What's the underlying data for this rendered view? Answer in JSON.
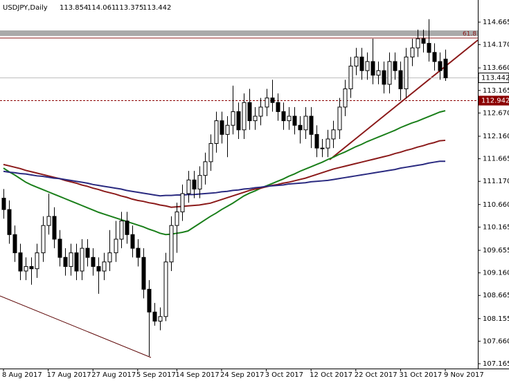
{
  "chart_data": {
    "type": "candlestick",
    "symbol": "USDJPY,Daily",
    "categories": [
      "8 Aug 2017",
      null,
      null,
      null,
      null,
      null,
      null,
      null,
      "17 Aug 2017",
      null,
      null,
      null,
      null,
      null,
      null,
      null,
      "27 Aug 2017",
      null,
      null,
      null,
      null,
      null,
      null,
      null,
      "5 Sep 2017",
      null,
      null,
      null,
      null,
      null,
      null,
      "14 Sep 2017",
      null,
      null,
      null,
      null,
      null,
      null,
      null,
      "24 Sep 2017",
      null,
      null,
      null,
      null,
      null,
      null,
      null,
      "3 Oct 2017",
      null,
      null,
      null,
      null,
      null,
      null,
      null,
      "12 Oct 2017",
      null,
      null,
      null,
      null,
      null,
      null,
      null,
      "22 Oct 2017",
      null,
      null,
      null,
      null,
      null,
      null,
      null,
      "31 Oct 2017",
      null,
      null,
      null,
      null,
      null,
      null,
      null,
      "9 Nov 2017"
    ],
    "open": [
      110.8,
      110.55,
      110.0,
      109.6,
      109.2,
      109.3,
      109.25,
      109.6,
      110.2,
      110.4,
      109.9,
      109.5,
      109.3,
      109.6,
      109.2,
      109.7,
      109.5,
      109.3,
      109.2,
      109.4,
      109.6,
      109.9,
      110.3,
      110.0,
      109.7,
      109.5,
      108.8,
      108.3,
      108.1,
      108.2,
      109.4,
      110.2,
      110.5,
      110.9,
      111.2,
      111.0,
      111.3,
      111.6,
      112.0,
      112.5,
      112.2,
      112.4,
      112.7,
      112.3,
      112.9,
      112.5,
      112.6,
      112.8,
      113.0,
      112.9,
      112.7,
      112.5,
      112.6,
      112.4,
      112.3,
      112.6,
      112.2,
      111.9,
      111.9,
      112.1,
      112.3,
      112.8,
      113.2,
      113.7,
      113.9,
      113.6,
      113.8,
      113.5,
      113.6,
      113.3,
      113.8,
      113.6,
      113.2,
      113.9,
      114.1,
      114.3,
      114.2,
      114.0,
      113.8,
      113.854
    ],
    "high": [
      111.0,
      110.75,
      110.2,
      109.8,
      109.5,
      109.5,
      109.8,
      110.4,
      110.9,
      110.6,
      110.1,
      109.7,
      109.8,
      109.8,
      109.9,
      109.9,
      109.7,
      109.5,
      109.6,
      110.1,
      110.3,
      110.5,
      110.5,
      110.2,
      109.9,
      109.7,
      109.0,
      108.5,
      108.4,
      109.6,
      110.4,
      110.7,
      111.1,
      111.4,
      111.4,
      111.5,
      111.8,
      112.2,
      112.7,
      112.7,
      112.6,
      113.27,
      112.9,
      113.1,
      113.2,
      112.8,
      113.0,
      113.2,
      113.4,
      113.1,
      112.9,
      112.8,
      112.8,
      112.6,
      112.8,
      112.8,
      112.4,
      112.1,
      112.3,
      112.5,
      113.0,
      113.4,
      113.9,
      114.1,
      114.1,
      114.0,
      114.3,
      113.8,
      113.8,
      114.0,
      114.0,
      113.8,
      114.1,
      114.3,
      114.5,
      114.5,
      114.73,
      114.2,
      114.0,
      114.061
    ],
    "low": [
      110.35,
      109.8,
      109.4,
      109.0,
      109.0,
      108.9,
      109.05,
      109.4,
      110.0,
      109.7,
      109.3,
      109.1,
      109.1,
      109.0,
      109.0,
      109.3,
      109.1,
      108.7,
      109.0,
      109.2,
      109.4,
      109.7,
      109.8,
      109.5,
      109.3,
      108.6,
      107.33,
      108.0,
      107.9,
      108.1,
      109.2,
      109.6,
      110.3,
      110.7,
      110.8,
      110.8,
      111.1,
      111.4,
      111.8,
      112.0,
      111.7,
      112.2,
      112.1,
      112.1,
      112.3,
      112.3,
      112.4,
      112.6,
      112.7,
      112.5,
      112.3,
      112.3,
      112.2,
      112.0,
      112.1,
      111.9,
      111.7,
      111.7,
      111.7,
      111.9,
      112.1,
      112.6,
      113.0,
      113.5,
      113.4,
      113.4,
      113.3,
      113.3,
      113.1,
      113.1,
      113.4,
      112.95,
      113.0,
      113.7,
      113.9,
      114.0,
      113.8,
      113.6,
      113.4,
      113.375
    ],
    "close": [
      110.55,
      110.0,
      109.6,
      109.2,
      109.3,
      109.25,
      109.6,
      110.2,
      110.4,
      109.9,
      109.5,
      109.3,
      109.6,
      109.2,
      109.7,
      109.5,
      109.3,
      109.2,
      109.4,
      109.6,
      109.9,
      110.3,
      110.0,
      109.7,
      109.5,
      108.8,
      108.3,
      108.1,
      108.2,
      109.4,
      110.2,
      110.5,
      110.9,
      111.2,
      111.0,
      111.3,
      111.6,
      112.0,
      112.5,
      112.2,
      112.4,
      112.7,
      112.3,
      112.9,
      112.5,
      112.6,
      112.8,
      113.0,
      112.9,
      112.7,
      112.5,
      112.6,
      112.4,
      112.3,
      112.6,
      112.2,
      111.9,
      111.9,
      112.1,
      112.3,
      112.8,
      113.2,
      113.7,
      113.9,
      113.6,
      113.8,
      113.5,
      113.6,
      113.3,
      113.8,
      113.6,
      113.2,
      113.9,
      114.1,
      114.3,
      114.2,
      114.0,
      113.8,
      113.6,
      113.442
    ],
    "moving_averages": [
      {
        "color": "#1a7f1a",
        "values": [
          111.46,
          111.38,
          111.31,
          111.23,
          111.15,
          111.09,
          111.04,
          110.99,
          110.94,
          110.89,
          110.84,
          110.79,
          110.74,
          110.69,
          110.64,
          110.59,
          110.54,
          110.49,
          110.45,
          110.41,
          110.37,
          110.33,
          110.29,
          110.25,
          110.21,
          110.17,
          110.12,
          110.08,
          110.03,
          110.0,
          110.01,
          110.03,
          110.05,
          110.08,
          110.16,
          110.24,
          110.32,
          110.4,
          110.47,
          110.55,
          110.62,
          110.69,
          110.77,
          110.85,
          110.91,
          110.96,
          111.02,
          111.07,
          111.12,
          111.17,
          111.22,
          111.28,
          111.33,
          111.39,
          111.44,
          111.49,
          111.54,
          111.59,
          111.65,
          111.7,
          111.76,
          111.81,
          111.87,
          111.93,
          111.98,
          112.04,
          112.09,
          112.14,
          112.19,
          112.24,
          112.29,
          112.35,
          112.4,
          112.45,
          112.49,
          112.54,
          112.59,
          112.64,
          112.69,
          112.72
        ]
      },
      {
        "color": "#8b1a1a",
        "values": [
          111.54,
          111.51,
          111.48,
          111.45,
          111.41,
          111.38,
          111.35,
          111.32,
          111.29,
          111.26,
          111.23,
          111.19,
          111.16,
          111.13,
          111.09,
          111.06,
          111.02,
          110.99,
          110.95,
          110.92,
          110.89,
          110.85,
          110.82,
          110.78,
          110.75,
          110.73,
          110.7,
          110.68,
          110.65,
          110.63,
          110.6,
          110.61,
          110.62,
          110.63,
          110.64,
          110.65,
          110.67,
          110.69,
          110.73,
          110.77,
          110.81,
          110.85,
          110.89,
          110.93,
          110.97,
          111.0,
          111.02,
          111.05,
          111.08,
          111.1,
          111.13,
          111.15,
          111.18,
          111.21,
          111.24,
          111.28,
          111.32,
          111.36,
          111.4,
          111.44,
          111.47,
          111.5,
          111.53,
          111.56,
          111.59,
          111.62,
          111.65,
          111.68,
          111.71,
          111.74,
          111.78,
          111.81,
          111.85,
          111.88,
          111.92,
          111.95,
          111.99,
          112.02,
          112.06,
          112.07
        ]
      },
      {
        "color": "#2a2a80",
        "values": [
          111.39,
          111.37,
          111.36,
          111.34,
          111.33,
          111.31,
          111.29,
          111.28,
          111.26,
          111.24,
          111.23,
          111.21,
          111.19,
          111.17,
          111.15,
          111.13,
          111.1,
          111.08,
          111.06,
          111.04,
          111.02,
          111.0,
          110.97,
          110.95,
          110.93,
          110.91,
          110.89,
          110.87,
          110.85,
          110.86,
          110.86,
          110.87,
          110.87,
          110.88,
          110.88,
          110.89,
          110.9,
          110.91,
          110.92,
          110.94,
          110.95,
          110.97,
          110.98,
          111.0,
          111.01,
          111.03,
          111.04,
          111.06,
          111.07,
          111.08,
          111.09,
          111.11,
          111.12,
          111.13,
          111.14,
          111.16,
          111.17,
          111.18,
          111.19,
          111.21,
          111.23,
          111.25,
          111.27,
          111.29,
          111.31,
          111.33,
          111.35,
          111.37,
          111.39,
          111.41,
          111.43,
          111.46,
          111.48,
          111.5,
          111.52,
          111.54,
          111.57,
          111.59,
          111.61,
          111.61
        ]
      }
    ],
    "levels": [
      {
        "value": 112.942,
        "color": "#8b0000"
      }
    ],
    "annotations": [
      "61.8"
    ],
    "ylim": [
      107.059,
      115.151
    ],
    "yticks": [
      114.665,
      {
        "value": 114.17,
        "label": "114.170"
      },
      {
        "value": 113.66,
        "label": "113.660"
      },
      113.165,
      {
        "value": 112.67,
        "label": "112.670"
      },
      {
        "value": 112.16,
        "label": "112.160"
      },
      111.665,
      {
        "value": 111.17,
        "label": "111.170"
      },
      {
        "value": 110.66,
        "label": "110.660"
      },
      110.165,
      109.655,
      {
        "value": 109.16,
        "label": "109.160"
      },
      108.665,
      108.155,
      {
        "value": 107.66,
        "label": "107.660"
      },
      107.165
    ]
  }
}
